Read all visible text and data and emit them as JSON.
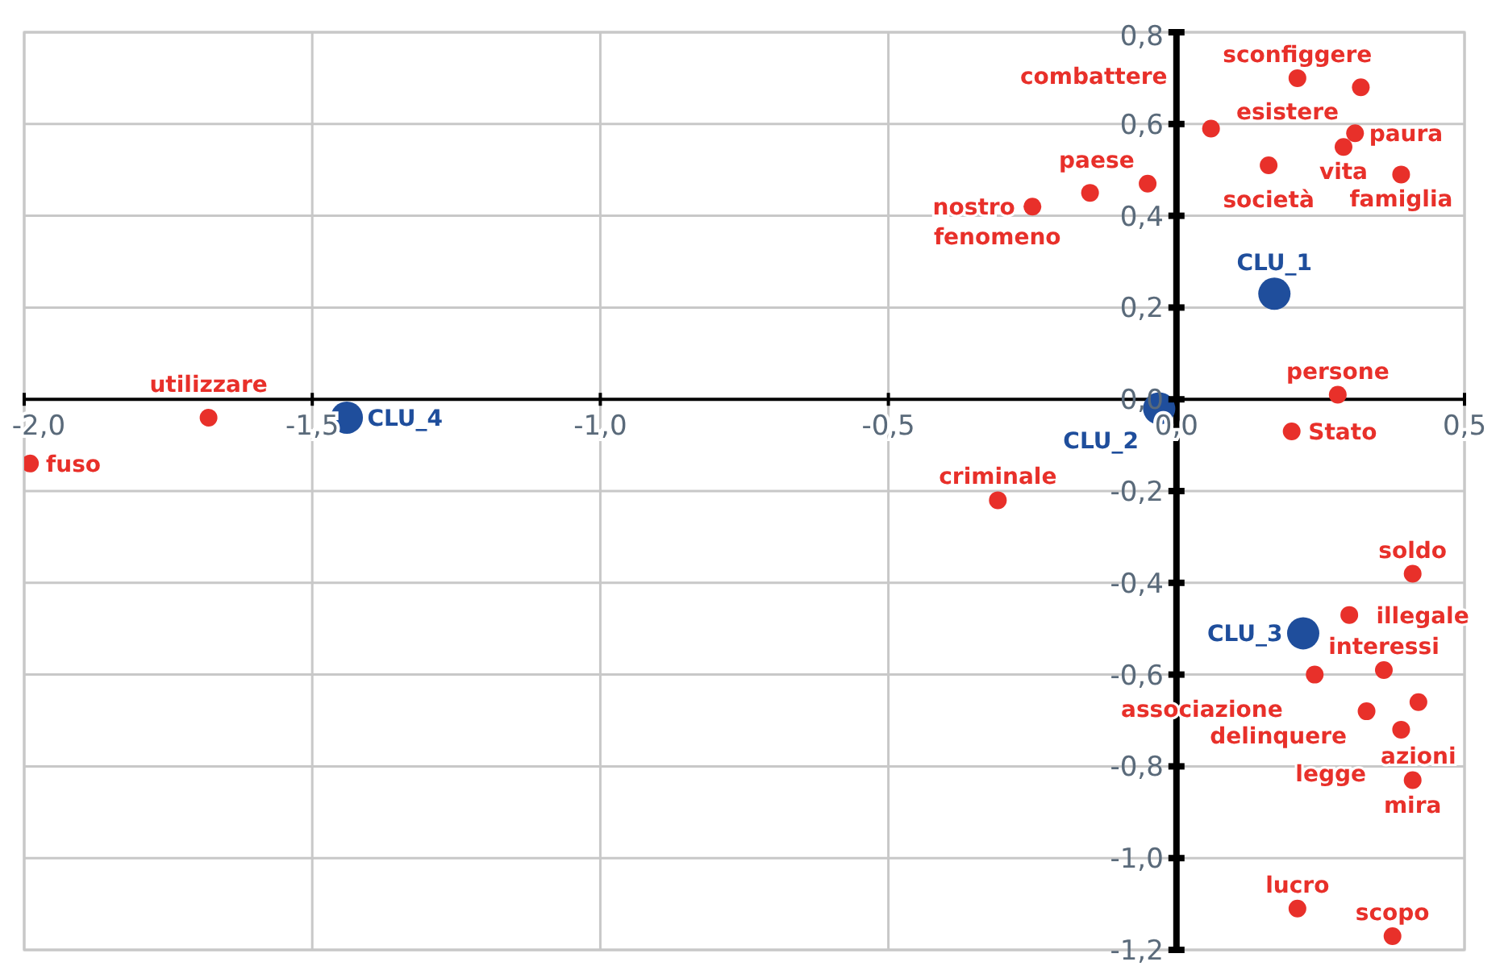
{
  "chart_data": {
    "type": "scatter",
    "marker": "circle",
    "grid": true,
    "legend": false,
    "xlim": [
      -2.0,
      0.5
    ],
    "xticks": [
      {
        "value": -2.0,
        "label": "-2,0"
      },
      {
        "value": -1.5,
        "label": "-1,5"
      },
      {
        "value": -1.0,
        "label": "-1,0"
      },
      {
        "value": -0.5,
        "label": "-0,5"
      },
      {
        "value": 0,
        "label": "0,0"
      },
      {
        "value": 0.5,
        "label": "0,5"
      }
    ],
    "ylim": [
      -1.2,
      0.8
    ],
    "yticks": [
      {
        "value": -1.2,
        "label": "-1,2"
      },
      {
        "value": -1.0,
        "label": "-1,0"
      },
      {
        "value": -0.8,
        "label": "-0,8"
      },
      {
        "value": -0.6,
        "label": "-0,6"
      },
      {
        "value": -0.4,
        "label": "-0,4"
      },
      {
        "value": -0.2,
        "label": "-0,2"
      },
      {
        "value": 0,
        "label": "0,0"
      },
      {
        "value": 0.2,
        "label": "0,2"
      },
      {
        "value": 0.4,
        "label": "0,4"
      },
      {
        "value": 0.6,
        "label": "0,6"
      },
      {
        "value": 0.8,
        "label": "0,8"
      }
    ],
    "series": [
      {
        "color": "#1f4e9c",
        "x": [
          0.17,
          -0.03,
          0.22,
          -1.44
        ],
        "values": [
          0.23,
          -0.02,
          -0.51,
          -0.04
        ]
      },
      {
        "color": "#e8302a",
        "x": [
          -0.31,
          0.28,
          0.2,
          0.41,
          0.3,
          0.24,
          0.36,
          0.33,
          0.42,
          0.39,
          0.41,
          0.21,
          0.375,
          0.21,
          0.32,
          0.06,
          0.31,
          0.29,
          0.16,
          0.39,
          -0.05,
          -0.15,
          -0.25,
          -1.68,
          -1.99
        ],
        "values": [
          -0.22,
          0.01,
          -0.07,
          -0.38,
          -0.47,
          -0.6,
          -0.59,
          -0.68,
          -0.66,
          -0.72,
          -0.83,
          -1.11,
          -1.17,
          0.7,
          0.68,
          0.59,
          0.58,
          0.55,
          0.51,
          0.49,
          0.47,
          0.45,
          0.42,
          -0.04,
          -0.14
        ]
      }
    ],
    "annotations": [
      {
        "text": "CLU_1",
        "x": 0.17,
        "y": 0.23
      },
      {
        "text": "CLU_2",
        "x": -0.03,
        "y": -0.02
      },
      {
        "text": "CLU_3",
        "x": 0.22,
        "y": -0.51
      },
      {
        "text": "CLU_4",
        "x": -1.44,
        "y": -0.04
      },
      {
        "text": "criminale",
        "x": -0.31,
        "y": -0.22
      },
      {
        "text": "persone",
        "x": 0.28,
        "y": 0.01
      },
      {
        "text": "Stato",
        "x": 0.2,
        "y": -0.07
      },
      {
        "text": "soldo",
        "x": 0.41,
        "y": -0.38
      },
      {
        "text": "illegale",
        "x": 0.3,
        "y": -0.47
      },
      {
        "text": "associazione",
        "x": 0.24,
        "y": -0.6
      },
      {
        "text": "interessi",
        "x": 0.36,
        "y": -0.59
      },
      {
        "text": "delinquere",
        "x": 0.33,
        "y": -0.68
      },
      {
        "text": "azioni",
        "x": 0.42,
        "y": -0.66
      },
      {
        "text": "legge",
        "x": 0.39,
        "y": -0.72
      },
      {
        "text": "mira",
        "x": 0.41,
        "y": -0.83
      },
      {
        "text": "lucro",
        "x": 0.21,
        "y": -1.11
      },
      {
        "text": "scopo",
        "x": 0.375,
        "y": -1.17
      },
      {
        "text": "sconfiggere",
        "x": 0.21,
        "y": 0.7
      },
      {
        "text": "esistere",
        "x": 0.32,
        "y": 0.68
      },
      {
        "text": "combattere",
        "x": 0.06,
        "y": 0.59
      },
      {
        "text": "paura",
        "x": 0.31,
        "y": 0.58
      },
      {
        "text": "vita",
        "x": 0.29,
        "y": 0.55
      },
      {
        "text": "società",
        "x": 0.16,
        "y": 0.51
      },
      {
        "text": "famiglia",
        "x": 0.39,
        "y": 0.49
      },
      {
        "text": "paese",
        "x": -0.05,
        "y": 0.47
      },
      {
        "text": "fenomeno",
        "x": -0.15,
        "y": 0.45
      },
      {
        "text": "nostro",
        "x": -0.25,
        "y": 0.42
      },
      {
        "text": "utilizzare",
        "x": -1.68,
        "y": -0.04
      },
      {
        "text": "fuso",
        "x": -1.99,
        "y": -0.14
      }
    ]
  }
}
